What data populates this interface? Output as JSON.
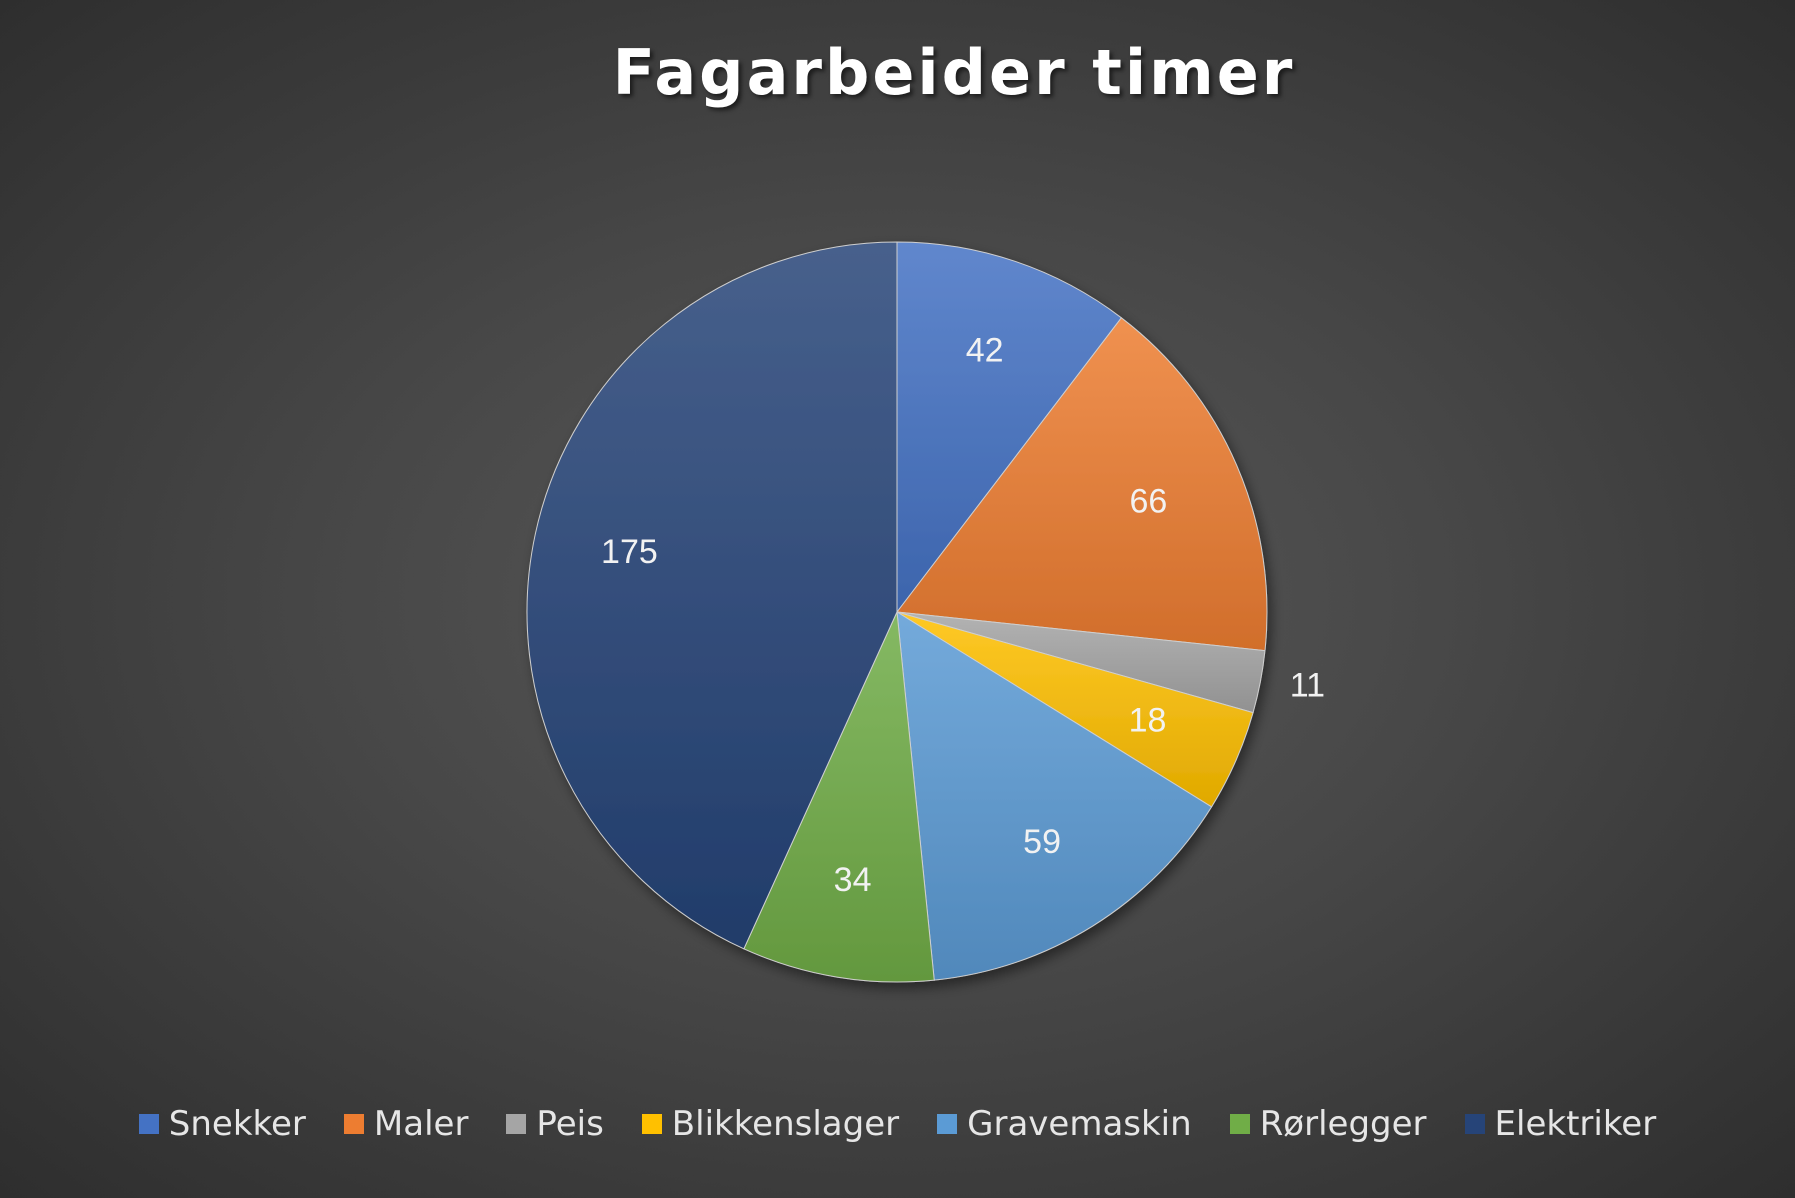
{
  "chart_data": {
    "type": "pie",
    "title": "Fagarbeider timer",
    "categories": [
      "Snekker",
      "Maler",
      "Peis",
      "Blikkenslager",
      "Gravemaskin",
      "Rørlegger",
      "Elektriker"
    ],
    "values": [
      42,
      66,
      11,
      18,
      59,
      34,
      175
    ],
    "colors": [
      "#4472C4",
      "#ED7D31",
      "#A5A5A5",
      "#FFC000",
      "#5B9BD5",
      "#70AD47",
      "#264478"
    ],
    "legend_position": "bottom",
    "data_labels": true
  }
}
